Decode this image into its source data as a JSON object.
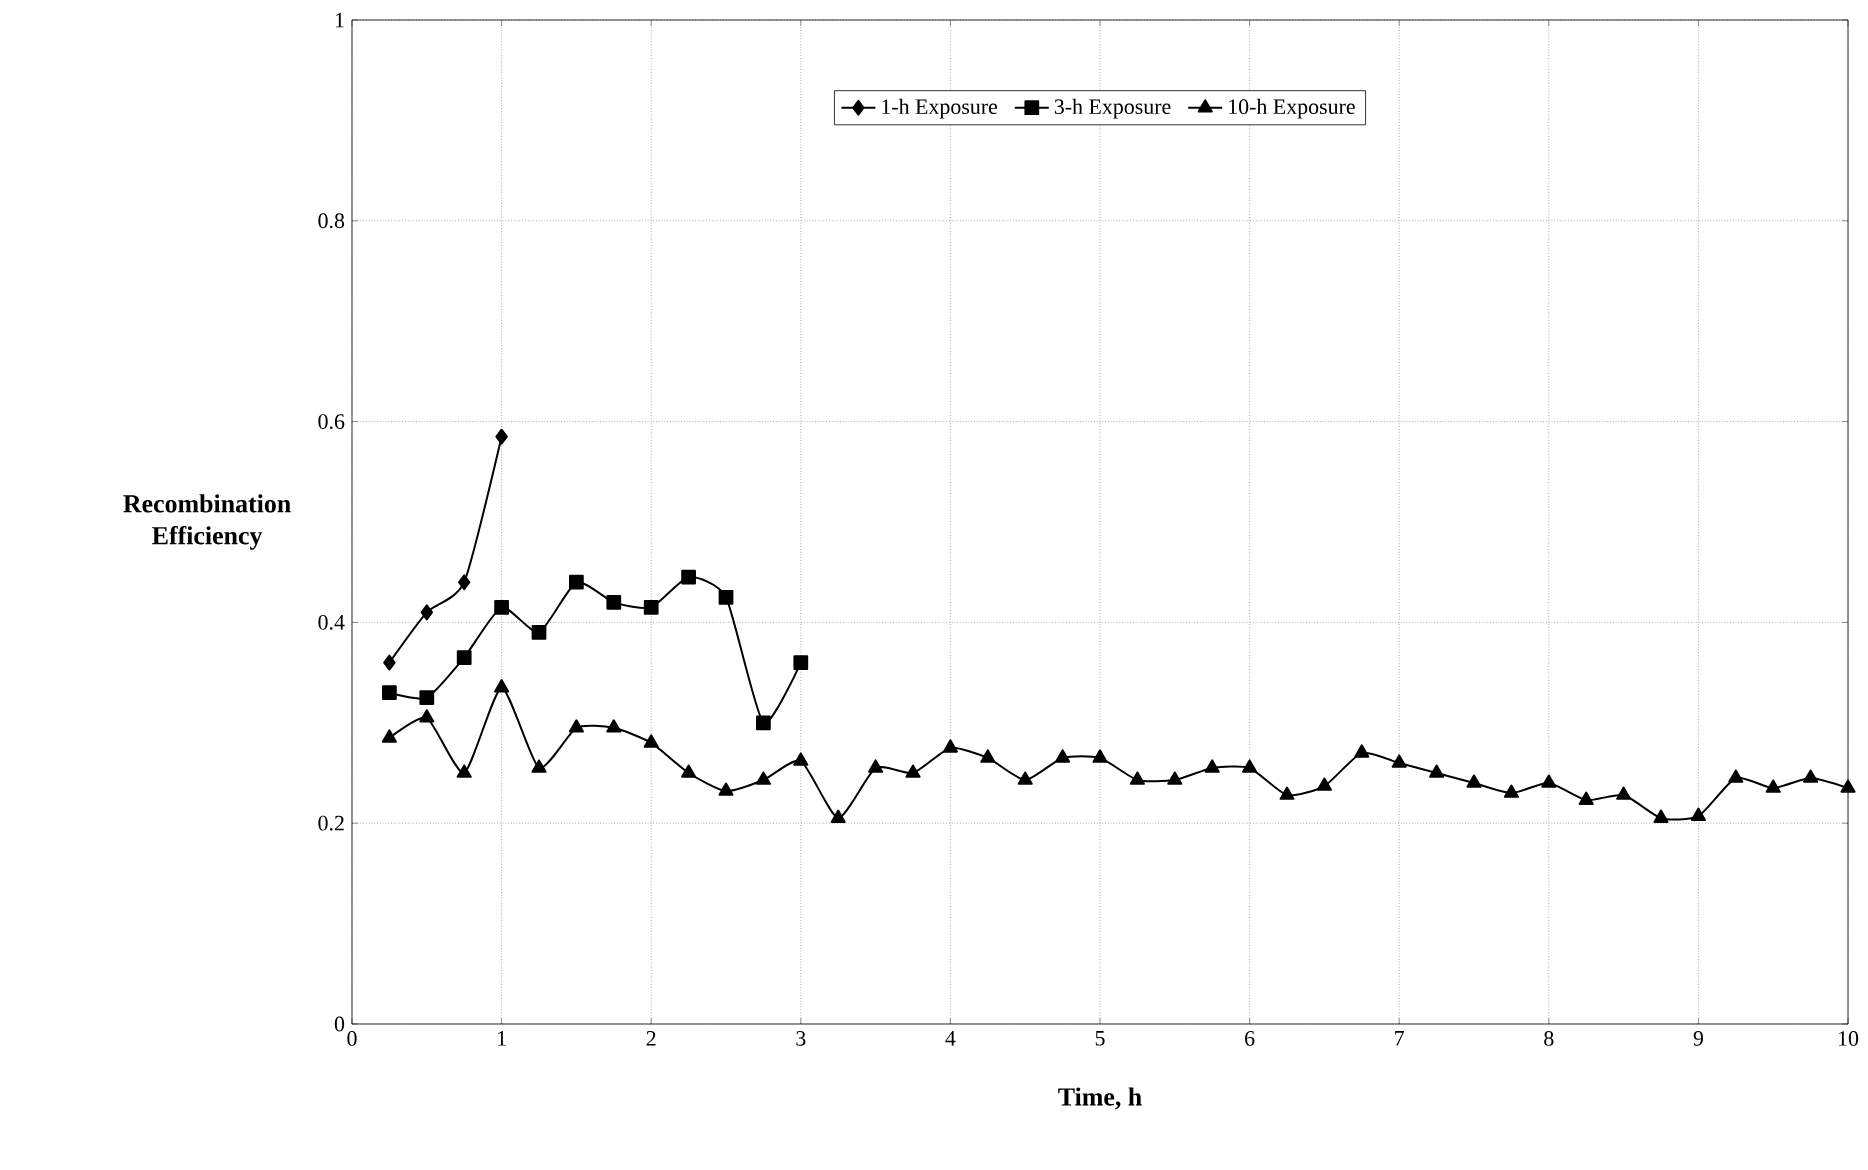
{
  "chart_data": {
    "type": "line",
    "xlabel": "Time, h",
    "ylabel": "Recombination Efficiency",
    "xlim": [
      0,
      10
    ],
    "ylim": [
      0,
      1
    ],
    "xticks": [
      0,
      1,
      2,
      3,
      4,
      5,
      6,
      7,
      8,
      9,
      10
    ],
    "yticks": [
      0,
      0.2,
      0.4,
      0.6,
      0.8,
      1
    ],
    "grid": true,
    "legend": "top",
    "line_style": "solid",
    "series": [
      {
        "name": "1-h Exposure",
        "color": "#000000",
        "marker": "diamond",
        "x": [
          0.25,
          0.5,
          0.75,
          1
        ],
        "values": [
          0.36,
          0.41,
          0.44,
          0.585
        ]
      },
      {
        "name": "3-h Exposure",
        "color": "#000000",
        "marker": "square",
        "x": [
          0.25,
          0.5,
          0.75,
          1,
          1.25,
          1.5,
          1.75,
          2,
          2.25,
          2.5,
          2.75,
          3
        ],
        "values": [
          0.33,
          0.325,
          0.365,
          0.415,
          0.39,
          0.44,
          0.42,
          0.415,
          0.445,
          0.425,
          0.3,
          0.36
        ]
      },
      {
        "name": "10-h Exposure",
        "color": "#000000",
        "marker": "triangle",
        "x": [
          0.25,
          0.5,
          0.75,
          1,
          1.25,
          1.5,
          1.75,
          2,
          2.25,
          2.5,
          2.75,
          3,
          3.25,
          3.5,
          3.75,
          4,
          4.25,
          4.5,
          4.75,
          5,
          5.25,
          5.5,
          5.75,
          6,
          6.25,
          6.5,
          6.75,
          7,
          7.25,
          7.5,
          7.75,
          8,
          8.25,
          8.5,
          8.75,
          9,
          9.25,
          9.5,
          9.75,
          10
        ],
        "values": [
          0.285,
          0.305,
          0.25,
          0.335,
          0.255,
          0.295,
          0.295,
          0.28,
          0.25,
          0.232,
          0.243,
          0.262,
          0.205,
          0.255,
          0.25,
          0.275,
          0.265,
          0.243,
          0.265,
          0.265,
          0.243,
          0.243,
          0.255,
          0.255,
          0.228,
          0.237,
          0.27,
          0.26,
          0.25,
          0.24,
          0.23,
          0.24,
          0.223,
          0.228,
          0.205,
          0.207,
          0.245,
          0.235,
          0.245,
          0.235
        ]
      }
    ]
  }
}
